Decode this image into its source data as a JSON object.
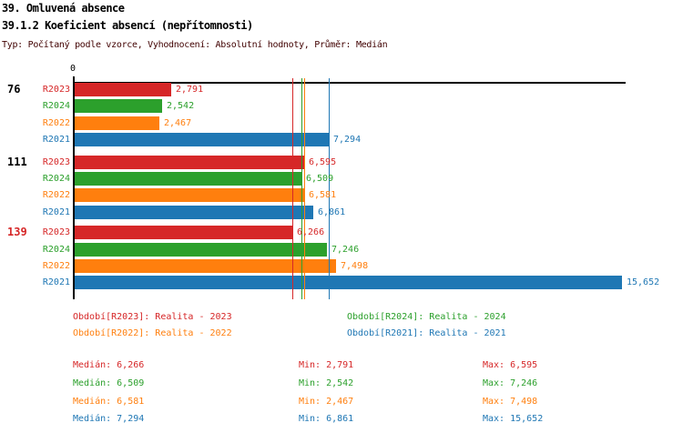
{
  "header": {
    "title1": "39. Omluvená absence",
    "title2": "39.1.2 Koeficient absencí (nepřítomnosti)",
    "subtitle": "Typ: Počítaný podle vzorce, Vyhodnocení: Absolutní hodnoty, Průměr: Medián"
  },
  "colors": {
    "R2023": "#d62728",
    "R2024": "#2ca02c",
    "R2022": "#ff7f0e",
    "R2021": "#1f77b4",
    "axis": "#000000",
    "subtitle": "#400000"
  },
  "chart_data": {
    "type": "bar",
    "orientation": "horizontal",
    "title": "39.1.2 Koeficient absencí (nepřítomnosti)",
    "axis": {
      "origin_label": "0",
      "x_min": 0,
      "x_max": 15652,
      "grid": false
    },
    "groups": [
      {
        "label": "76",
        "label_color": "#000000",
        "bars": [
          {
            "series": "R2023",
            "value": 2791,
            "label": "2,791",
            "color": "#d62728"
          },
          {
            "series": "R2024",
            "value": 2542,
            "label": "2,542",
            "color": "#2ca02c"
          },
          {
            "series": "R2022",
            "value": 2467,
            "label": "2,467",
            "color": "#ff7f0e"
          },
          {
            "series": "R2021",
            "value": 7294,
            "label": "7,294",
            "color": "#1f77b4"
          }
        ]
      },
      {
        "label": "111",
        "label_color": "#000000",
        "bars": [
          {
            "series": "R2023",
            "value": 6595,
            "label": "6,595",
            "color": "#d62728"
          },
          {
            "series": "R2024",
            "value": 6509,
            "label": "6,509",
            "color": "#2ca02c"
          },
          {
            "series": "R2022",
            "value": 6581,
            "label": "6,581",
            "color": "#ff7f0e"
          },
          {
            "series": "R2021",
            "value": 6861,
            "label": "6,861",
            "color": "#1f77b4"
          }
        ]
      },
      {
        "label": "139",
        "label_color": "#d62728",
        "bars": [
          {
            "series": "R2023",
            "value": 6266,
            "label": "6,266",
            "color": "#d62728"
          },
          {
            "series": "R2024",
            "value": 7246,
            "label": "7,246",
            "color": "#2ca02c"
          },
          {
            "series": "R2022",
            "value": 7498,
            "label": "7,498",
            "color": "#ff7f0e"
          },
          {
            "series": "R2021",
            "value": 15652,
            "label": "15,652",
            "color": "#1f77b4"
          }
        ]
      }
    ],
    "median_lines": [
      {
        "series": "R2023",
        "value": 6266,
        "color": "#d62728"
      },
      {
        "series": "R2024",
        "value": 6509,
        "color": "#2ca02c"
      },
      {
        "series": "R2022",
        "value": 6581,
        "color": "#ff7f0e"
      },
      {
        "series": "R2021",
        "value": 7294,
        "color": "#1f77b4"
      }
    ]
  },
  "legend": {
    "items": [
      {
        "text": "Období[R2023]: Realita - 2023",
        "color": "#d62728"
      },
      {
        "text": "Období[R2024]: Realita - 2024",
        "color": "#2ca02c"
      },
      {
        "text": "Období[R2022]: Realita - 2022",
        "color": "#ff7f0e"
      },
      {
        "text": "Období[R2021]: Realita - 2021",
        "color": "#1f77b4"
      }
    ]
  },
  "stats": {
    "labels": {
      "median": "Medián:",
      "min": "Min:",
      "max": "Max:"
    },
    "rows": [
      {
        "color": "#d62728",
        "median": "6,266",
        "min": "2,791",
        "max": "6,595"
      },
      {
        "color": "#2ca02c",
        "median": "6,509",
        "min": "2,542",
        "max": "7,246"
      },
      {
        "color": "#ff7f0e",
        "median": "6,581",
        "min": "2,467",
        "max": "7,498"
      },
      {
        "color": "#1f77b4",
        "median": "7,294",
        "min": "6,861",
        "max": "15,652"
      }
    ]
  }
}
